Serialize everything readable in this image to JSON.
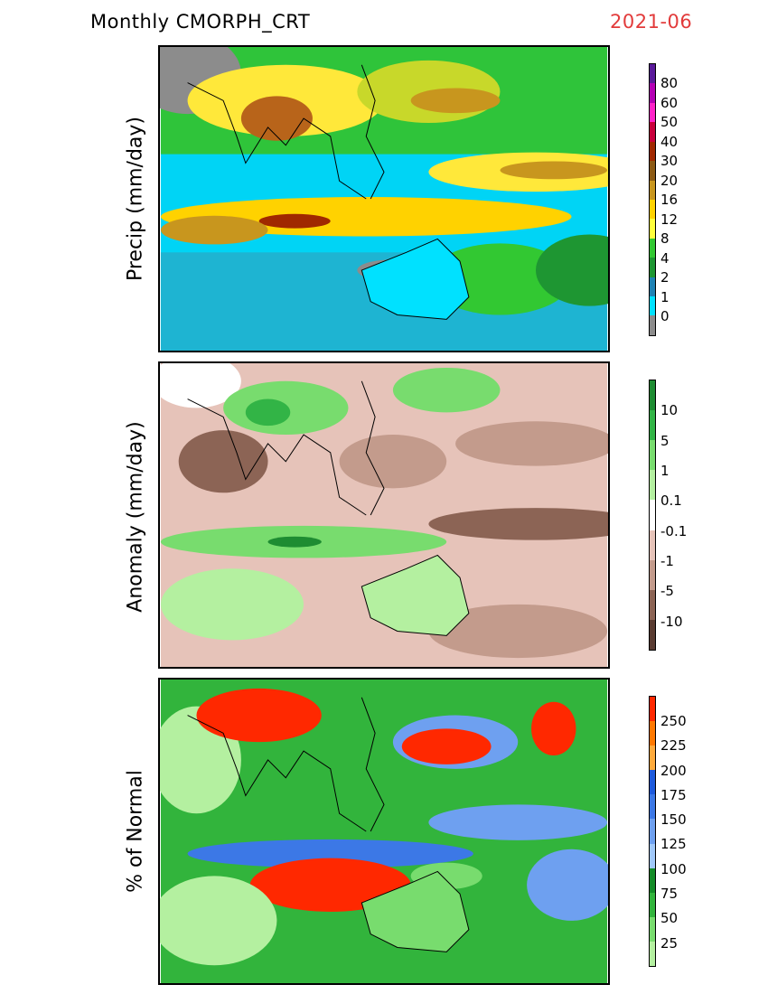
{
  "header": {
    "title": "Monthly CMORPH_CRT",
    "date": "2021-06",
    "date_color": "#e23b3b"
  },
  "panels": [
    {
      "ylabel": "Precip (mm/day)",
      "ticks": [
        "80",
        "60",
        "50",
        "40",
        "30",
        "20",
        "16",
        "12",
        "8",
        "4",
        "2",
        "1",
        "0"
      ],
      "colors": [
        "#5a1a9a",
        "#b400b4",
        "#ff22c8",
        "#c8003c",
        "#a02800",
        "#8c5a14",
        "#c8961e",
        "#ffd200",
        "#ffff3c",
        "#32c832",
        "#1e9632",
        "#1e82b4",
        "#00e1ff",
        "#8c8c8c"
      ]
    },
    {
      "ylabel": "Anomaly (mm/day)",
      "ticks": [
        "10",
        "5",
        "1",
        "0.1",
        "-0.1",
        "-1",
        "-5",
        "-10"
      ],
      "colors": [
        "#1e8c32",
        "#32b446",
        "#78dc6e",
        "#b4f0a0",
        "#ffffff",
        "#e6c3b9",
        "#c39b8c",
        "#8c6455",
        "#5a3c32"
      ]
    },
    {
      "ylabel": "% of Normal",
      "ticks": [
        "250",
        "225",
        "200",
        "175",
        "150",
        "125",
        "100",
        "75",
        "50",
        "25"
      ],
      "colors": [
        "#ff2800",
        "#ff7800",
        "#ffaa3c",
        "#1e5adc",
        "#3c78e6",
        "#6ea0f0",
        "#a0c8fa",
        "#148c28",
        "#32b43c",
        "#78dc6e",
        "#b4f0a0"
      ]
    }
  ]
}
